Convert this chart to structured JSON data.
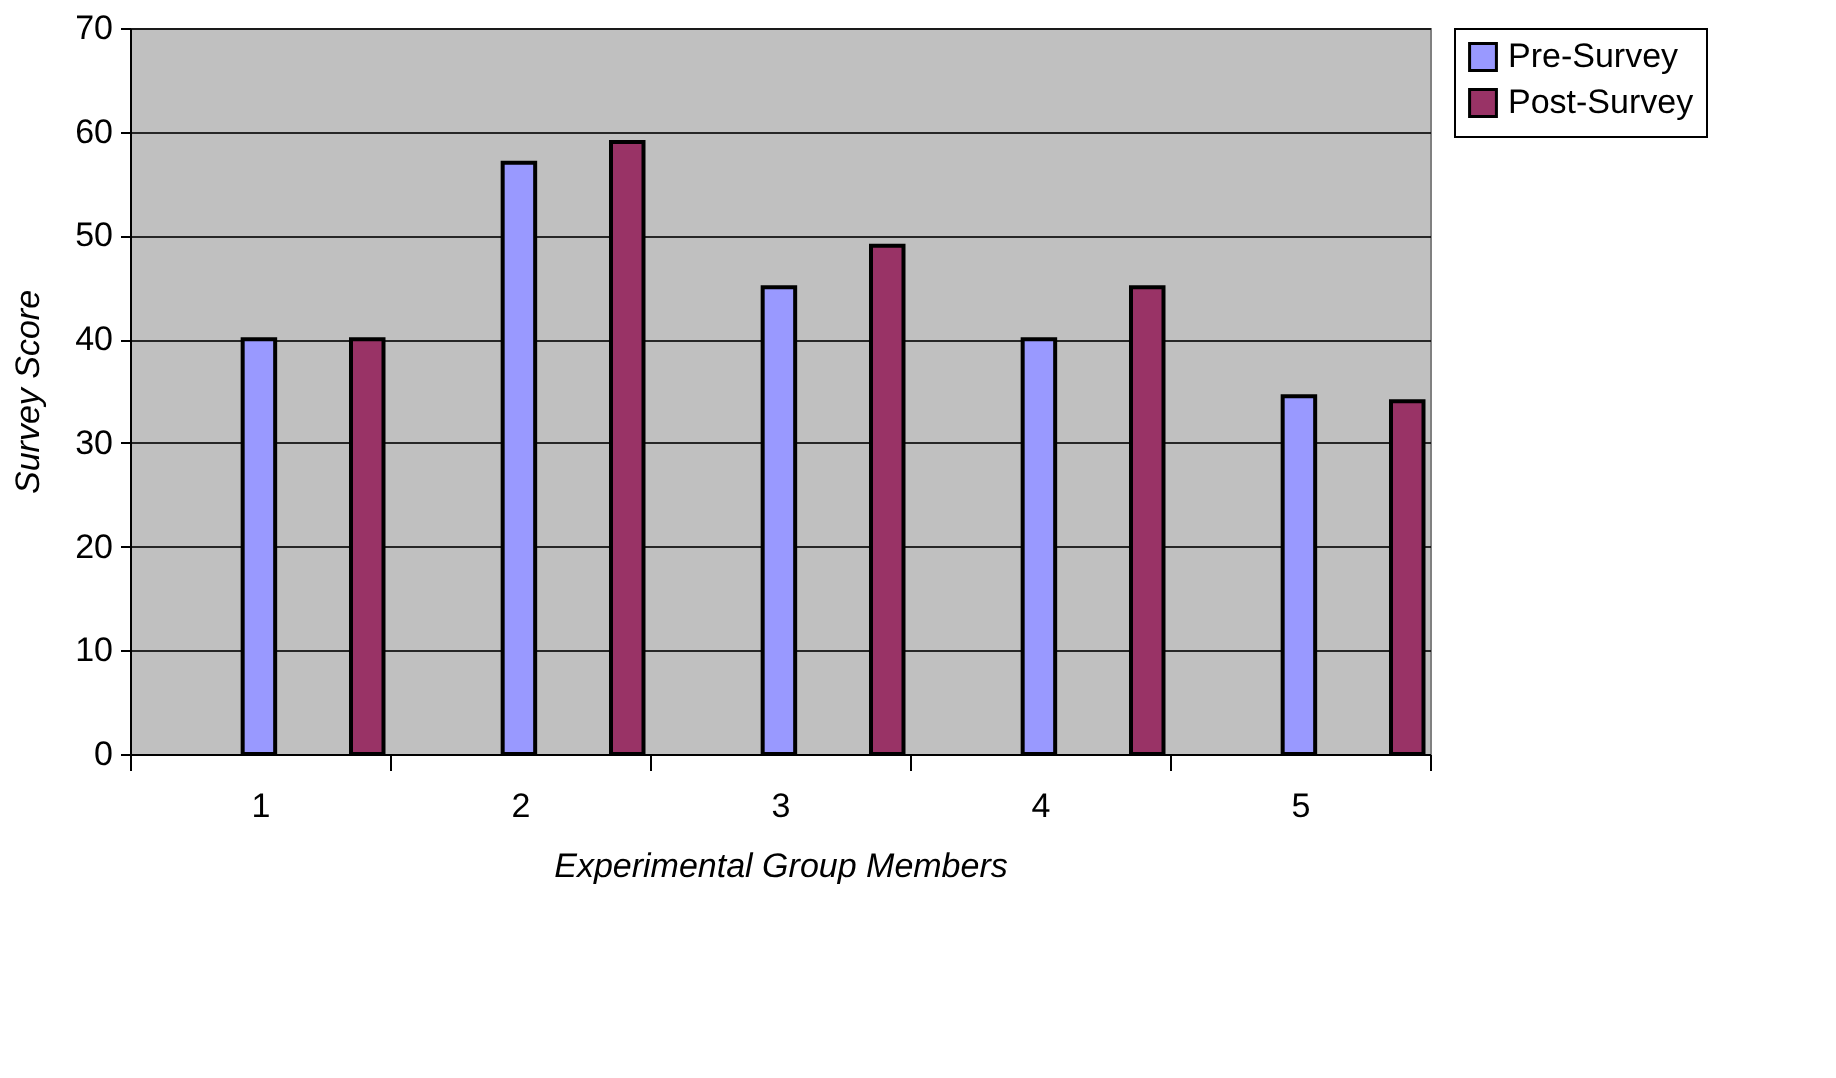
{
  "chart_data": {
    "type": "bar",
    "categories": [
      "1",
      "2",
      "3",
      "4",
      "5"
    ],
    "series": [
      {
        "name": "Pre-Survey",
        "color": "#9999ff",
        "values": [
          40,
          57,
          45,
          40,
          34.5
        ]
      },
      {
        "name": "Post-Survey",
        "color": "#993366",
        "values": [
          40,
          59,
          49,
          45,
          34
        ]
      }
    ],
    "xlabel": "Experimental Group Members",
    "ylabel": "Survey Score",
    "ylim": [
      0,
      70
    ],
    "yticks": [
      0,
      10,
      20,
      30,
      40,
      50,
      60,
      70
    ],
    "grid": "y",
    "legend": "right"
  }
}
